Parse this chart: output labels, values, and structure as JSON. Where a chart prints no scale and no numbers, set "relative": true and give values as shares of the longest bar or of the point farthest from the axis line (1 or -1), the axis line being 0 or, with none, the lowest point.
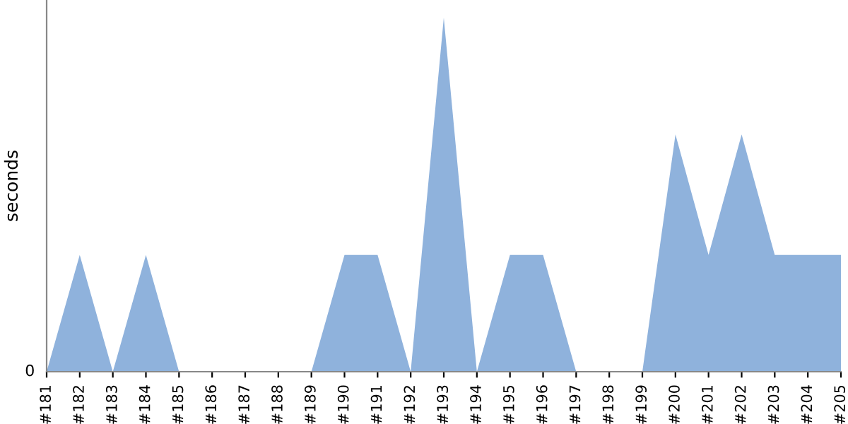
{
  "chart_data": {
    "type": "area",
    "ylabel": "seconds",
    "relative": true,
    "annotations": [
      "0"
    ],
    "color": "#8fb2dc",
    "grid": false,
    "legend": false,
    "categories": [
      "#181",
      "#182",
      "#183",
      "#184",
      "#185",
      "#186",
      "#187",
      "#188",
      "#189",
      "#190",
      "#191",
      "#192",
      "#193",
      "#194",
      "#195",
      "#196",
      "#197",
      "#198",
      "#199",
      "#200",
      "#201",
      "#202",
      "#203",
      "#204",
      "#205"
    ],
    "values": [
      0,
      0.33,
      0,
      0.33,
      0,
      0,
      0,
      0,
      0,
      0.33,
      0.33,
      0,
      1,
      0,
      0.33,
      0.33,
      0,
      0,
      0,
      0.67,
      0.33,
      0.67,
      0.33,
      0.33,
      0.33
    ]
  }
}
